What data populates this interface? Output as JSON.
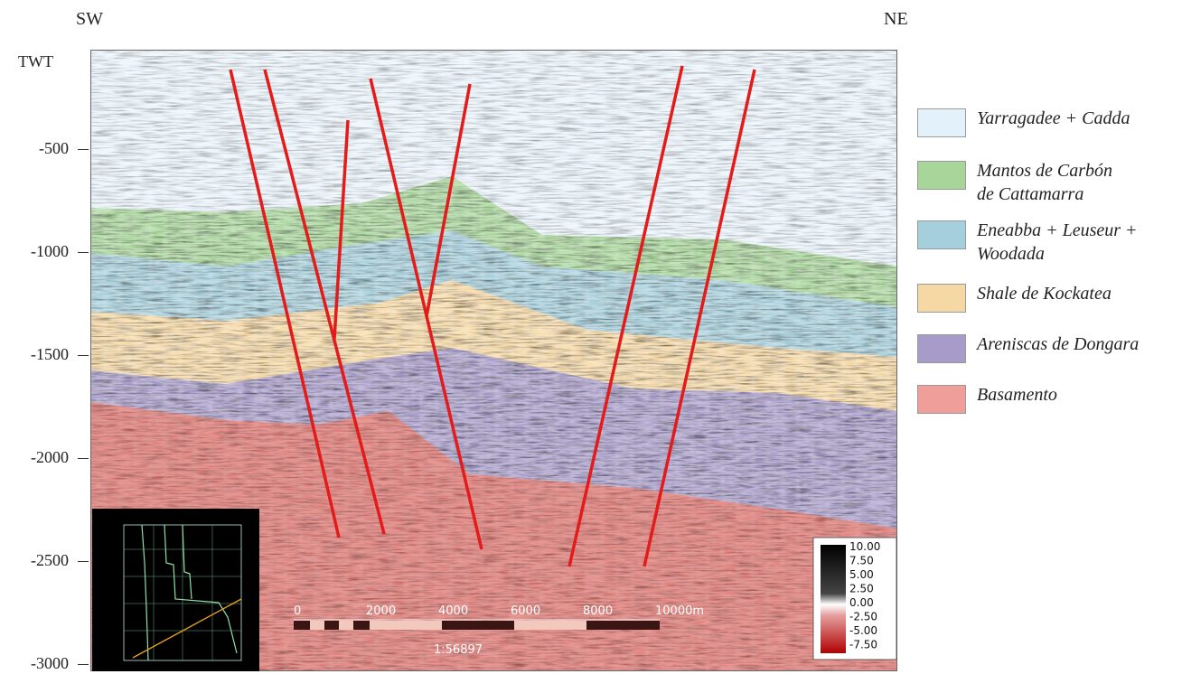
{
  "directions": {
    "left": "SW",
    "right": "NE"
  },
  "vertical_axis": {
    "label": "TWT",
    "ticks": [
      "-500",
      "-1000",
      "-1500",
      "-2000",
      "-2500",
      "-3000"
    ]
  },
  "legend": [
    {
      "label": "Yarragadee + Cadda",
      "color": "#e3f1fb"
    },
    {
      "label": "Mantos de Carbón\nde Cattamarra",
      "color": "#a8d69a"
    },
    {
      "label": "Eneabba + Leuseur +\nWoodada",
      "color": "#a5cfdc"
    },
    {
      "label": "Shale de Kockatea",
      "color": "#f6d8a4"
    },
    {
      "label": "Areniscas de Dongara",
      "color": "#a79bc9"
    },
    {
      "label": "Basamento",
      "color": "#ef9e9a"
    }
  ],
  "colors": {
    "fault": "#e31b1b",
    "base_red": "#c8554f"
  },
  "scale_bar": {
    "ticks": [
      "0",
      "2000",
      "4000",
      "6000",
      "8000",
      "10000m"
    ],
    "caption": "1:56897"
  },
  "amplitude_scale": {
    "ticks": [
      "10.00",
      "7.50",
      "5.00",
      "2.50",
      "0.00",
      "-2.50",
      "-5.00",
      "-7.50"
    ]
  }
}
